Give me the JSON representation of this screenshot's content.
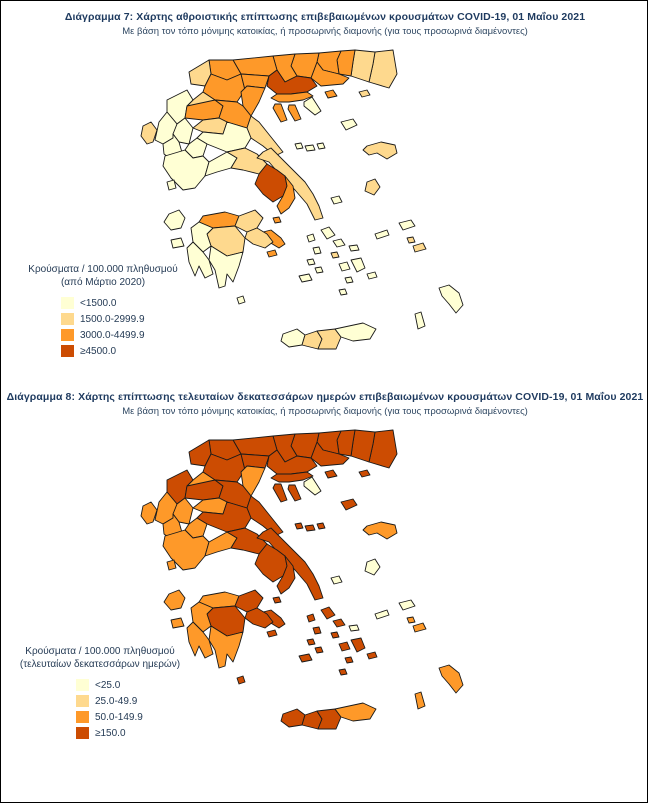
{
  "page": {
    "background": "#ffffff",
    "border_color": "#000000",
    "title_color": "#1e3a5f",
    "legend_text_color": "#253b55"
  },
  "class_colors": {
    "c1": "#ffffd4",
    "c2": "#fed98e",
    "c3": "#fe9929",
    "c4": "#cc4c02"
  },
  "map_style": {
    "stroke": "#1a1a1a",
    "sea": "#ffffff"
  },
  "chart_data": [
    {
      "type": "choropleth",
      "title": "Διάγραμμα 7: Χάρτης αθροιστικής επίπτωσης επιβεβαιωμένων κρουσμάτων COVID-19, 01 Μαΐου 2021",
      "subtitle": "Με βάση τον τόπο μόνιμης κατοικίας, ή προσωρινής διαμονής (για τους προσωρινά διαμένοντες)",
      "legend_title_line1": "Κρούσματα / 100.000 πληθυσμού",
      "legend_title_line2": "(από Μάρτιο 2020)",
      "classes": [
        {
          "label": "<1500.0",
          "color": "#ffffd4"
        },
        {
          "label": "1500.0-2999.9",
          "color": "#fed98e"
        },
        {
          "label": "3000.0-4499.9",
          "color": "#fe9929"
        },
        {
          "label": "≥4500.0",
          "color": "#cc4c02"
        }
      ],
      "regions": {
        "evros": 2,
        "rhodopi": 2,
        "xanthi": 3,
        "drama": 3,
        "kavala": 3,
        "thasos": 3,
        "samothraki": 2,
        "limnos": 1,
        "serres": 3,
        "kilkis": 3,
        "pella": 3,
        "florina": 3,
        "kastoria": 2,
        "kozani": 3,
        "grevena": 2,
        "imathia": 3,
        "pieria": 3,
        "thessaloniki": 4,
        "chalkidiki": 3,
        "kassandra": 3,
        "sithonia": 3,
        "athos": 1,
        "ioannina": 1,
        "thesprotia": 1,
        "arta": 1,
        "preveza": 1,
        "trikala": 3,
        "karditsa": 2,
        "larissa": 3,
        "magnesia": 2,
        "skiathos": 1,
        "skopelos": 1,
        "alonnisos": 1,
        "skyros": 1,
        "fthiotida": 1,
        "evrytania": 1,
        "aetolia": 1,
        "fokida": 1,
        "boeotia": 2,
        "evia": 2,
        "attica": 4,
        "attica_east": 3,
        "islands_pe": 3,
        "aegina": 3,
        "hydra": 3,
        "achaia": 3,
        "korinthia": 2,
        "argolida": 2,
        "arcadia": 2,
        "ilia": 1,
        "messinia": 1,
        "laconia": 1,
        "kythira": 1,
        "corfu": 2,
        "lefkada": 1,
        "kefalonia": 1,
        "zakynthos": 1,
        "lesvos": 2,
        "chios": 2,
        "samos": 1,
        "ikaria": 1,
        "kalymnos": 2,
        "kos": 2,
        "rhodes": 1,
        "karpathos": 1,
        "andros": 1,
        "tinos": 1,
        "mykonos": 1,
        "syros": 2,
        "kea": 1,
        "kythnos": 1,
        "serifos": 1,
        "sifnos": 1,
        "milos": 1,
        "paros": 1,
        "naxos": 1,
        "ios": 1,
        "santorini": 1,
        "amorgos": 1,
        "chania": 1,
        "rethymno": 2,
        "heraklion": 2,
        "lasithi": 1
      }
    },
    {
      "type": "choropleth",
      "title": "Διάγραμμα 8: Χάρτης επίπτωσης τελευταίων δεκατεσσάρων ημερών επιβεβαιωμένων κρουσμάτων COVID-19, 01 Μαΐου 2021",
      "subtitle": "Με βάση τον τόπο μόνιμης κατοικίας, ή προσωρινής διαμονής (για τους προσωρινά διαμένοντες)",
      "legend_title_line1": "Κρούσματα / 100.000 πληθυσμού",
      "legend_title_line2": "(τελευταίων δεκατεσσάρων ημερών)",
      "classes": [
        {
          "label": "<25.0",
          "color": "#ffffd4"
        },
        {
          "label": "25.0-49.9",
          "color": "#fed98e"
        },
        {
          "label": "50.0-149.9",
          "color": "#fe9929"
        },
        {
          "label": "≥150.0",
          "color": "#cc4c02"
        }
      ],
      "regions": {
        "evros": 4,
        "rhodopi": 4,
        "xanthi": 4,
        "drama": 4,
        "kavala": 4,
        "thasos": 4,
        "samothraki": 4,
        "limnos": 4,
        "serres": 4,
        "kilkis": 4,
        "pella": 4,
        "florina": 4,
        "kastoria": 4,
        "kozani": 4,
        "grevena": 3,
        "imathia": 4,
        "pieria": 3,
        "thessaloniki": 4,
        "chalkidiki": 4,
        "kassandra": 4,
        "sithonia": 4,
        "athos": 1,
        "ioannina": 4,
        "thesprotia": 3,
        "arta": 3,
        "preveza": 3,
        "trikala": 4,
        "karditsa": 3,
        "larissa": 4,
        "magnesia": 4,
        "skiathos": 4,
        "skopelos": 4,
        "alonnisos": 4,
        "skyros": 1,
        "fthiotida": 4,
        "evrytania": 3,
        "aetolia": 3,
        "fokida": 3,
        "boeotia": 4,
        "evia": 4,
        "attica": 4,
        "attica_east": 4,
        "islands_pe": 4,
        "aegina": 4,
        "hydra": 4,
        "achaia": 3,
        "korinthia": 4,
        "argolida": 4,
        "arcadia": 4,
        "ilia": 3,
        "messinia": 3,
        "laconia": 3,
        "kythira": 4,
        "corfu": 3,
        "lefkada": 3,
        "kefalonia": 3,
        "zakynthos": 3,
        "lesvos": 3,
        "chios": 1,
        "samos": 1,
        "ikaria": 1,
        "kalymnos": 3,
        "kos": 3,
        "rhodes": 3,
        "karpathos": 3,
        "andros": 4,
        "tinos": 4,
        "mykonos": 1,
        "syros": 4,
        "kea": 4,
        "kythnos": 4,
        "serifos": 4,
        "sifnos": 4,
        "milos": 4,
        "paros": 4,
        "naxos": 4,
        "ios": 4,
        "santorini": 4,
        "amorgos": 4,
        "chania": 4,
        "rethymno": 4,
        "heraklion": 4,
        "lasithi": 3
      }
    }
  ]
}
